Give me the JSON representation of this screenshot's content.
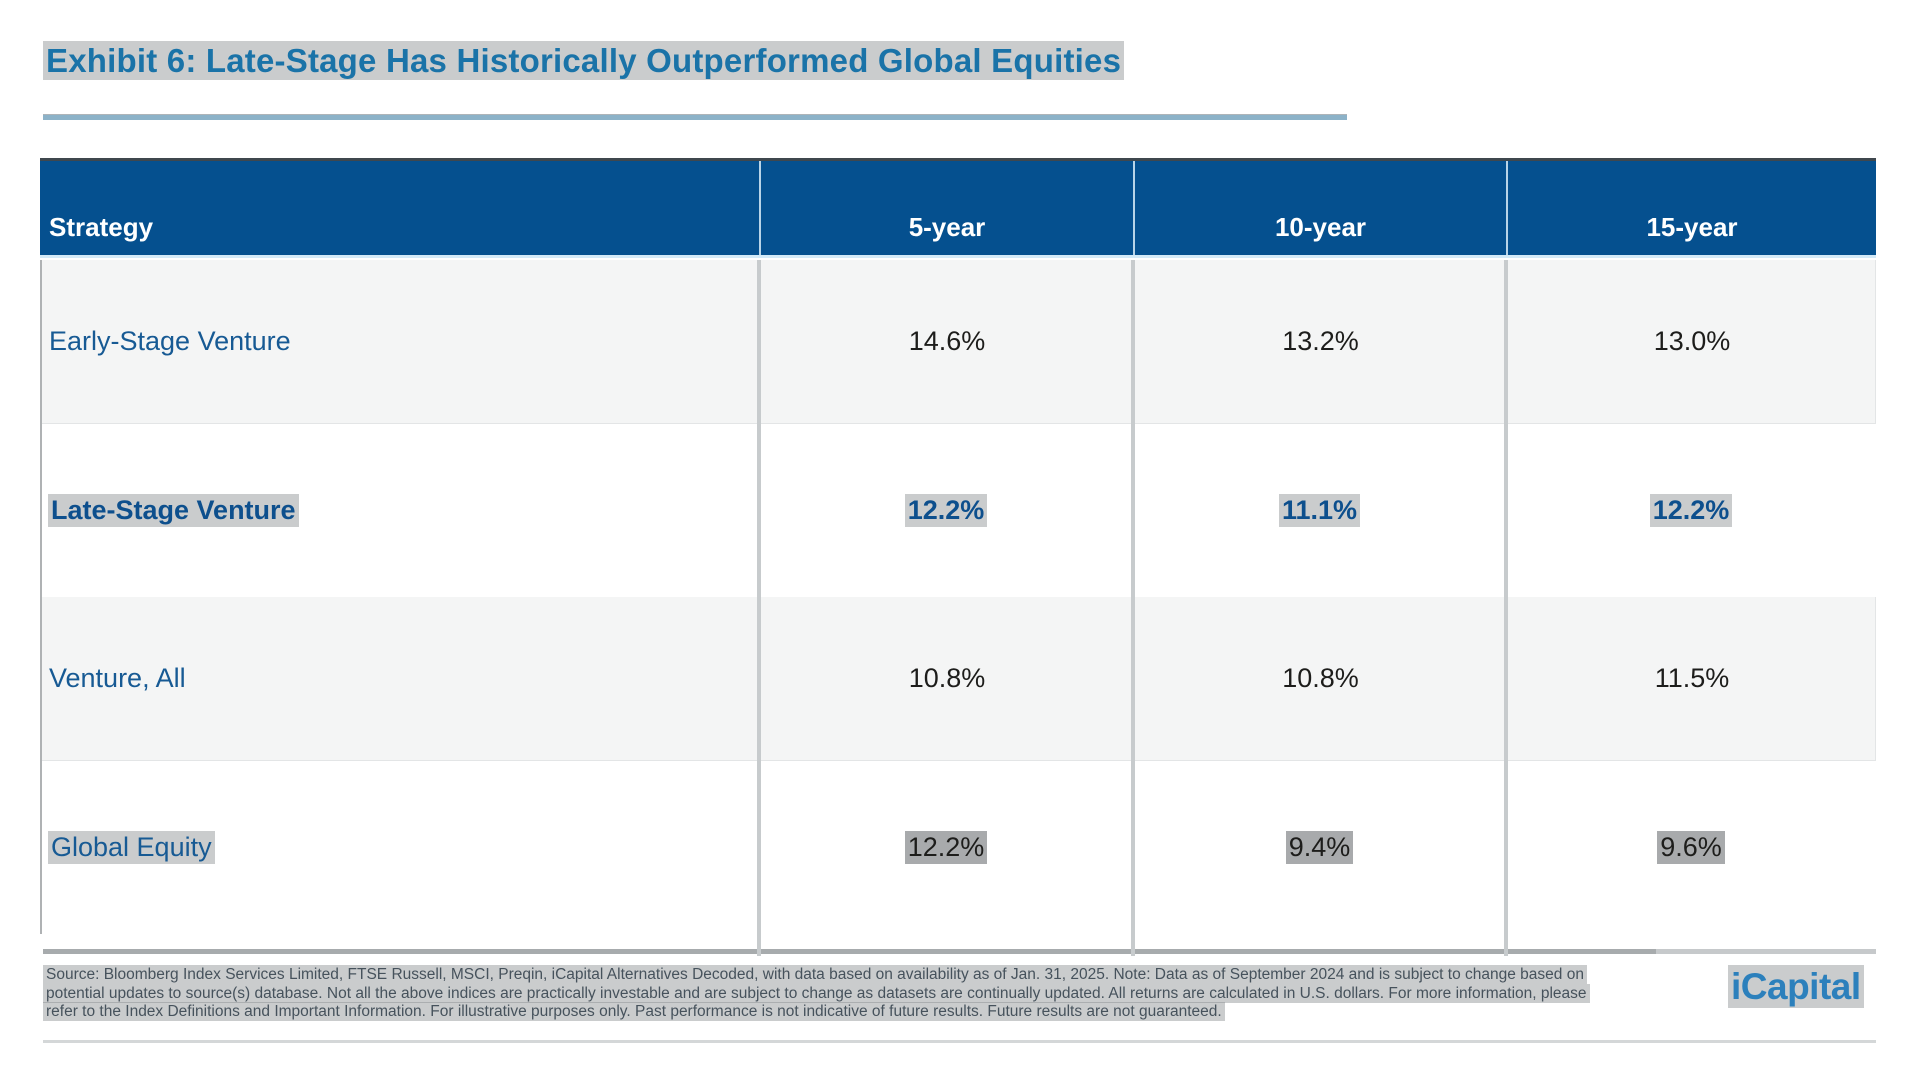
{
  "title": "Exhibit 6: Late-Stage Has Historically Outperformed Global Equities",
  "table": {
    "columns": [
      "Strategy",
      "5-year",
      "10-year",
      "15-year"
    ],
    "rows": [
      {
        "strategy": "Early-Stage Venture",
        "values": [
          "14.6%",
          "13.2%",
          "13.0%"
        ],
        "emphasized": false,
        "shaded": true,
        "highlighted": false
      },
      {
        "strategy": "Late-Stage Venture",
        "values": [
          "12.2%",
          "11.1%",
          "12.2%"
        ],
        "emphasized": true,
        "shaded": false,
        "highlighted": true
      },
      {
        "strategy": "Venture, All",
        "values": [
          "10.8%",
          "10.8%",
          "11.5%"
        ],
        "emphasized": false,
        "shaded": true,
        "highlighted": false
      },
      {
        "strategy": "Global Equity",
        "values": [
          "12.2%",
          "9.4%",
          "9.6%"
        ],
        "emphasized": false,
        "shaded": false,
        "highlighted": true
      }
    ]
  },
  "footer": {
    "source_lines": [
      "Source: Bloomberg Index Services Limited, FTSE Russell, MSCI, Preqin, iCapital Alternatives Decoded, with data based on availability as of Jan. 31, 2025. Note: Data as of September 2024 and is subject to change based on",
      "potential updates to source(s) database. Not all the above indices are practically investable and are subject to change as datasets are continually updated. All returns are calculated in U.S. dollars. For more information, please",
      "refer to the Index Definitions and Important Information. For illustrative purposes only. Past performance is not indicative of future results. Future results are not guaranteed."
    ],
    "logo": "iCapital"
  },
  "colors": {
    "header_background": "#05508f",
    "title_blue": "#1a73a8",
    "strategy_text_blue": "#175a94",
    "emphasis_blue": "#0d4f8d",
    "value_text": "#1d1d1b",
    "shaded_row": "#f4f5f5",
    "logo_blue": "#2c80bc"
  }
}
